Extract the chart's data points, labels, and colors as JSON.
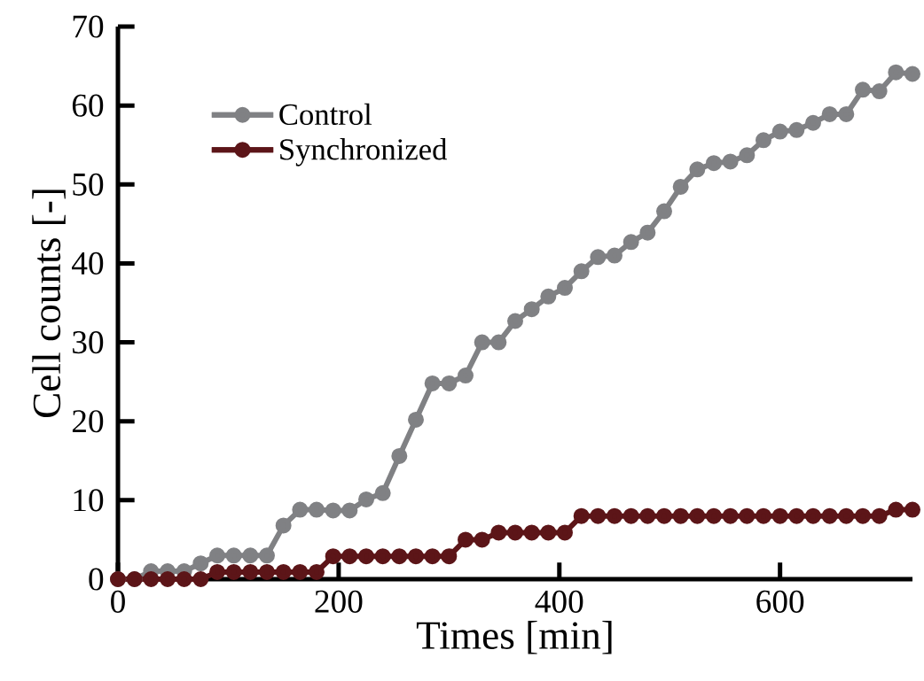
{
  "chart_data": {
    "type": "line",
    "xlabel": "Times [min]",
    "ylabel": "Cell counts [-]",
    "x": [
      0,
      15,
      30,
      45,
      60,
      75,
      90,
      105,
      120,
      135,
      150,
      165,
      180,
      195,
      210,
      225,
      240,
      255,
      270,
      285,
      300,
      315,
      330,
      345,
      360,
      375,
      390,
      405,
      420,
      435,
      450,
      465,
      480,
      495,
      510,
      525,
      540,
      555,
      570,
      585,
      600,
      615,
      630,
      645,
      660,
      675,
      690,
      705,
      720
    ],
    "series": [
      {
        "name": "Control",
        "color": "#808184",
        "values": [
          0,
          0,
          1,
          1,
          1,
          2,
          3,
          3,
          3,
          3,
          6.8,
          8.8,
          8.8,
          8.7,
          8.7,
          10.1,
          10.9,
          15.6,
          20.2,
          24.8,
          24.8,
          25.8,
          30,
          30,
          32.7,
          34.2,
          35.8,
          36.9,
          39,
          40.8,
          41,
          42.7,
          43.9,
          46.6,
          49.7,
          51.9,
          52.7,
          52.9,
          53.7,
          55.6,
          56.7,
          56.9,
          57.8,
          58.9,
          58.9,
          62,
          61.8,
          64.2,
          64
        ]
      },
      {
        "name": "Synchronized",
        "color": "#5c1518",
        "values": [
          0,
          0,
          0,
          0,
          0,
          0,
          0.9,
          0.9,
          0.9,
          0.9,
          0.9,
          0.9,
          0.9,
          2.9,
          2.9,
          2.9,
          2.9,
          2.9,
          2.9,
          2.9,
          2.9,
          5,
          5,
          5.9,
          5.9,
          5.9,
          5.9,
          5.9,
          8,
          8,
          8,
          8,
          8,
          8,
          8,
          8,
          8,
          8,
          8,
          8,
          8,
          8,
          8,
          8,
          8,
          8,
          8,
          8.8,
          8.8
        ]
      }
    ],
    "xlim": [
      0,
      720
    ],
    "xticks": [
      0,
      200,
      400,
      600
    ],
    "ylim": [
      0,
      70
    ],
    "yticks": [
      0,
      10,
      20,
      30,
      40,
      50,
      60,
      70
    ],
    "legend": "top left",
    "marker": "circle",
    "grid": false
  }
}
